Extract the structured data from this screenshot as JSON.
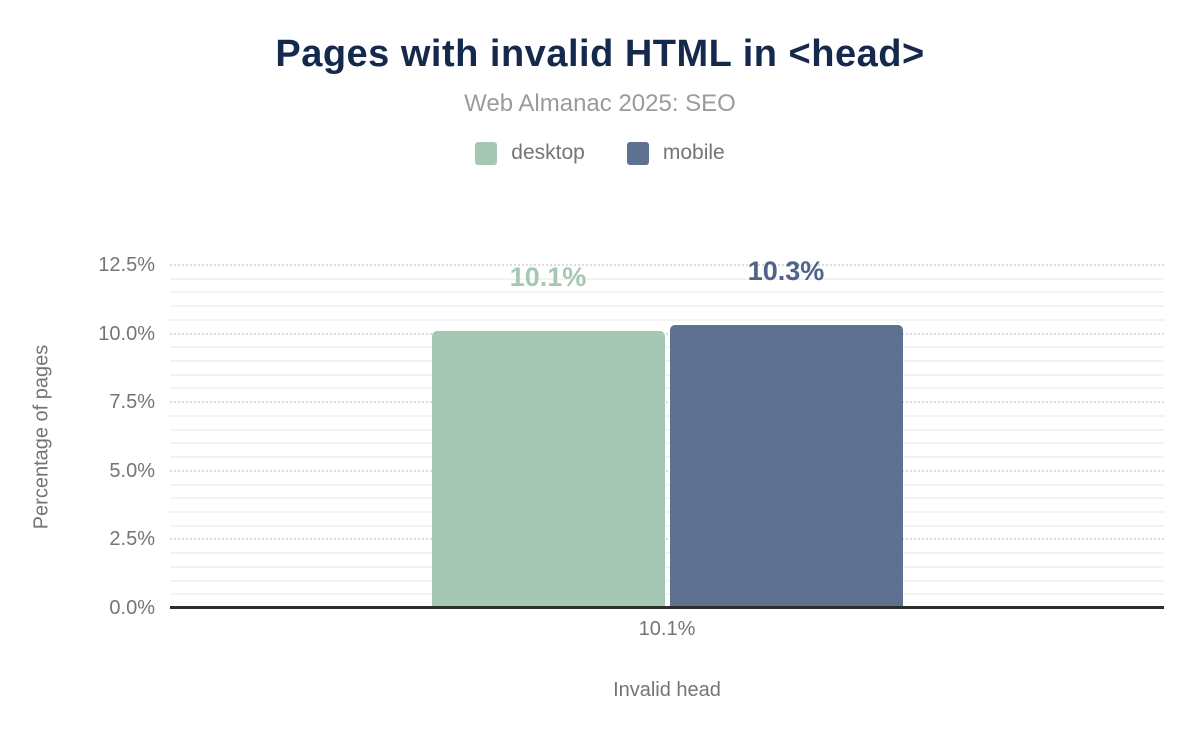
{
  "chart_data": {
    "type": "bar",
    "title": "Pages with invalid HTML in <head>",
    "subtitle": "Web Almanac 2025: SEO",
    "categories": [
      "Invalid head"
    ],
    "series": [
      {
        "name": "desktop",
        "values": [
          10.1
        ],
        "labels": [
          "10.1%"
        ],
        "color": "#a5c8b4",
        "label_color": "#a5c8b4"
      },
      {
        "name": "mobile",
        "values": [
          10.3
        ],
        "labels": [
          "10.3%"
        ],
        "color": "#5e7190",
        "label_color": "#50648a"
      }
    ],
    "xlabel": "Invalid head",
    "ylabel": "Percentage of pages",
    "x_tick_labels": [
      "10.1%"
    ],
    "yticks": [
      {
        "value": 0,
        "label": "0.0%"
      },
      {
        "value": 2.5,
        "label": "2.5%"
      },
      {
        "value": 5,
        "label": "5.0%"
      },
      {
        "value": 7.5,
        "label": "7.5%"
      },
      {
        "value": 10,
        "label": "10.0%"
      },
      {
        "value": 12.5,
        "label": "12.5%"
      }
    ],
    "ylim": [
      0,
      12.5
    ],
    "grid": {
      "major_step": 2.5,
      "minor_step": 0.5,
      "majors_dotted": true
    },
    "legend_position": "top"
  },
  "colors": {
    "title": "#15294d",
    "subtitle": "#9b9b9b",
    "axis_text": "#757575",
    "axis_line": "#2d2d2d",
    "grid_major": "#dcdcdc",
    "grid_minor": "#f3f3f3",
    "background": "#ffffff"
  }
}
